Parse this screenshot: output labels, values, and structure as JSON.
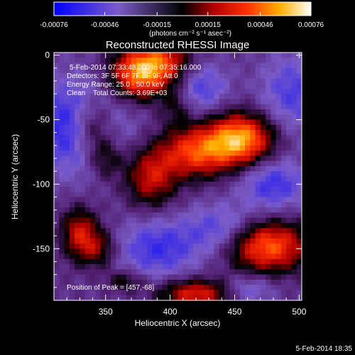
{
  "chart_data": {
    "type": "heatmap",
    "title": "Reconstructed RHESSI Image",
    "xlabel": "Heliocentric X (arcsec)",
    "ylabel": "Heliocentric Y (arcsec)",
    "xlim": [
      310,
      502
    ],
    "ylim": [
      -190,
      2
    ],
    "x_ticks": [
      350,
      400,
      450,
      500
    ],
    "y_ticks": [
      0,
      -50,
      -100,
      -150
    ],
    "colorbar": {
      "ticks": [
        "-0.00076",
        "-0.00046",
        "-0.00015",
        "0.00015",
        "0.00046",
        "0.00076"
      ],
      "range": [
        -0.00076,
        0.00076
      ],
      "unit_label": "(photons cm⁻² s⁻¹ asec⁻²)"
    },
    "annotations": [
      "5-Feb-2014 07:33:48.000 to 07:35:16.000",
      "Detectors: 3F 5F 6F 7F 8F 9F, Att 0",
      "Energy Range: 25.0 - 50.0 keV",
      "Clean    Total Counts: 3.69E+03"
    ],
    "peak_label": "Position of Peak = [457,-68]",
    "peak": {
      "x": 457,
      "y": -68
    },
    "footer": "5-Feb-2014 18:35",
    "sources": [
      {
        "x": 455,
        "y": -65,
        "sx": 18,
        "sy": 14,
        "amp": 0.00076
      },
      {
        "x": 420,
        "y": -75,
        "sx": 20,
        "sy": 14,
        "amp": 0.00058
      },
      {
        "x": 340,
        "y": -55,
        "sx": 12,
        "sy": 16,
        "amp": 0.0005
      },
      {
        "x": 375,
        "y": -15,
        "sx": 16,
        "sy": 14,
        "amp": 0.00068
      },
      {
        "x": 395,
        "y": -5,
        "sx": 16,
        "sy": 12,
        "amp": 0.00045
      },
      {
        "x": 385,
        "y": -95,
        "sx": 14,
        "sy": 16,
        "amp": 0.00045
      },
      {
        "x": 350,
        "y": -80,
        "sx": 10,
        "sy": 12,
        "amp": 0.0003
      },
      {
        "x": 475,
        "y": -148,
        "sx": 22,
        "sy": 14,
        "amp": 0.00068
      },
      {
        "x": 420,
        "y": -185,
        "sx": 20,
        "sy": 8,
        "amp": 0.00052
      },
      {
        "x": 330,
        "y": -138,
        "sx": 10,
        "sy": 14,
        "amp": 0.00046
      },
      {
        "x": 345,
        "y": -150,
        "sx": 10,
        "sy": 10,
        "amp": 0.0003
      },
      {
        "x": 405,
        "y": -40,
        "sx": 8,
        "sy": 10,
        "amp": 0.0002
      },
      {
        "x": 365,
        "y": -175,
        "sx": 10,
        "sy": 6,
        "amp": 0.00025
      },
      {
        "x": 330,
        "y": -55,
        "sx": 25,
        "sy": 25,
        "amp": -0.0005
      },
      {
        "x": 425,
        "y": -25,
        "sx": 14,
        "sy": 14,
        "amp": -0.0003
      },
      {
        "x": 495,
        "y": -30,
        "sx": 18,
        "sy": 22,
        "amp": -0.0003
      },
      {
        "x": 480,
        "y": -100,
        "sx": 18,
        "sy": 14,
        "amp": -0.00035
      },
      {
        "x": 440,
        "y": -135,
        "sx": 20,
        "sy": 14,
        "amp": -0.0003
      },
      {
        "x": 390,
        "y": -150,
        "sx": 22,
        "sy": 16,
        "amp": -0.00035
      },
      {
        "x": 460,
        "y": -182,
        "sx": 14,
        "sy": 8,
        "amp": -0.00025
      }
    ]
  }
}
